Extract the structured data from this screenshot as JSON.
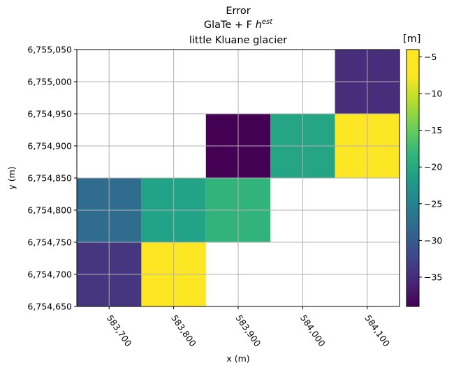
{
  "chart_data": {
    "type": "heatmap",
    "title_lines": [
      "Error",
      "GlaTe + F",
      "h",
      "est",
      "little Kluane glacier"
    ],
    "xlabel": "x (m)",
    "ylabel": "y (m)",
    "xlim": [
      583650,
      584150
    ],
    "ylim": [
      6754650,
      6755050
    ],
    "grid": true,
    "x_ticks": [
      583700,
      583800,
      583900,
      584000,
      584100
    ],
    "x_tick_labels": [
      "583,700",
      "583,800",
      "583,900",
      "584,000",
      "584,100"
    ],
    "y_ticks": [
      6754650,
      6754700,
      6754750,
      6754800,
      6754850,
      6754900,
      6754950,
      6755000,
      6755050
    ],
    "y_tick_labels": [
      "6,754,650",
      "6,754,700",
      "6,754,750",
      "6,754,800",
      "6,754,850",
      "6,754,900",
      "6,754,950",
      "6,755,000",
      "6,755,050"
    ],
    "cell_size": 100,
    "cells": [
      {
        "x": 583700,
        "y": 6754700,
        "value": -34
      },
      {
        "x": 583800,
        "y": 6754700,
        "value": -4
      },
      {
        "x": 583700,
        "y": 6754800,
        "value": -28
      },
      {
        "x": 583800,
        "y": 6754800,
        "value": -21
      },
      {
        "x": 583900,
        "y": 6754800,
        "value": -18.5
      },
      {
        "x": 583900,
        "y": 6754900,
        "value": -39
      },
      {
        "x": 584000,
        "y": 6754900,
        "value": -20.5
      },
      {
        "x": 584100,
        "y": 6754900,
        "value": -5.5
      },
      {
        "x": 584100,
        "y": 6755000,
        "value": -35
      }
    ],
    "colorbar": {
      "colormap": "viridis",
      "vmin": -39,
      "vmax": -4,
      "ticks": [
        -35,
        -30,
        -25,
        -20,
        -15,
        -10,
        -5
      ],
      "tick_labels": [
        "−35",
        "−30",
        "−25",
        "−20",
        "−15",
        "−10",
        "−5"
      ],
      "unit_label": "[m]"
    }
  }
}
